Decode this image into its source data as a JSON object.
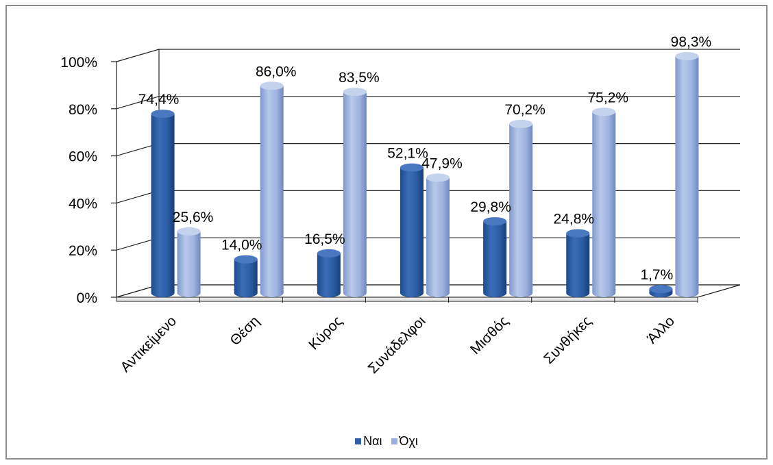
{
  "chart_data": {
    "type": "bar",
    "style": "3d-cylinder",
    "categories": [
      "Αντικείμενο",
      "Θέση",
      "Κύρος",
      "Συνάδελφοι",
      "Μισθός",
      "Συνθήκες",
      "Άλλο"
    ],
    "series": [
      {
        "name": "Ναι",
        "color": "#2f5fa6",
        "values": [
          74.4,
          14.0,
          16.5,
          52.1,
          29.8,
          24.8,
          1.7
        ]
      },
      {
        "name": "Όχι",
        "color": "#98afdc",
        "values": [
          25.6,
          86.0,
          83.5,
          47.9,
          70.2,
          75.2,
          98.3
        ]
      }
    ],
    "data_labels": {
      "Ναι": [
        "74,4%",
        "14,0%",
        "16,5%",
        "52,1%",
        "29,8%",
        "24,8%",
        "1,7%"
      ],
      "Όχι": [
        "25,6%",
        "86,0%",
        "83,5%",
        "47,9%",
        "70,2%",
        "75,2%",
        "98,3%"
      ]
    },
    "y_ticks": [
      "0%",
      "20%",
      "40%",
      "60%",
      "80%",
      "100%"
    ],
    "ylim": [
      0,
      100
    ],
    "grid": true,
    "legend_position": "bottom"
  }
}
